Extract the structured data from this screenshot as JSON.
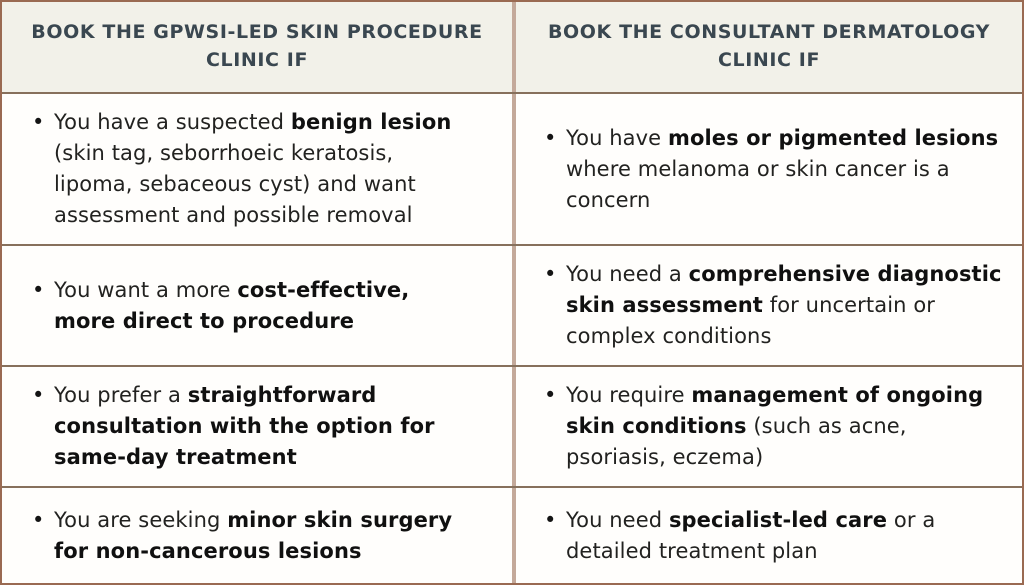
{
  "table": {
    "bullet_glyph": "•",
    "headers": {
      "left": "BOOK THE GPWSI-LED SKIN PROCEDURE CLINIC IF",
      "right": "BOOK THE CONSULTANT DERMATOLOGY CLINIC IF"
    },
    "rows": [
      {
        "left": [
          {
            "text": "You have a suspected ",
            "bold": false
          },
          {
            "text": "benign lesion",
            "bold": true
          },
          {
            "text": " (skin tag, seborrhoeic keratosis, lipoma, sebaceous cyst) and want assessment and possible removal",
            "bold": false
          }
        ],
        "right": [
          {
            "text": "You have ",
            "bold": false
          },
          {
            "text": "moles or pigmented lesions",
            "bold": true
          },
          {
            "text": " where melanoma or skin cancer is a concern",
            "bold": false
          }
        ]
      },
      {
        "left": [
          {
            "text": "You want a more ",
            "bold": false
          },
          {
            "text": "cost-effective, more direct to procedure",
            "bold": true
          }
        ],
        "right": [
          {
            "text": "You need a ",
            "bold": false
          },
          {
            "text": "comprehensive diagnostic skin assessment",
            "bold": true
          },
          {
            "text": " for uncertain or complex conditions",
            "bold": false
          }
        ]
      },
      {
        "left": [
          {
            "text": "You prefer a ",
            "bold": false
          },
          {
            "text": "straightforward consultation with the option for same-day treatment",
            "bold": true
          }
        ],
        "right": [
          {
            "text": "You require ",
            "bold": false
          },
          {
            "text": "management of ongoing skin conditions",
            "bold": true
          },
          {
            "text": " (such as acne, psoriasis, eczema)",
            "bold": false
          }
        ]
      },
      {
        "left": [
          {
            "text": "You are seeking ",
            "bold": false
          },
          {
            "text": "minor skin surgery for non-cancerous lesions",
            "bold": true
          }
        ],
        "right": [
          {
            "text": "You need ",
            "bold": false
          },
          {
            "text": "specialist-led care",
            "bold": true
          },
          {
            "text": " or a detailed treatment plan",
            "bold": false
          }
        ]
      }
    ]
  },
  "colors": {
    "outer_border": "#9a6a52",
    "row_divider": "#87705c",
    "column_divider": "#c4a99a",
    "header_bg": "#f2f1e9",
    "header_text": "#3a4750",
    "body_bg": "#fffefc",
    "body_text": "#222220"
  }
}
